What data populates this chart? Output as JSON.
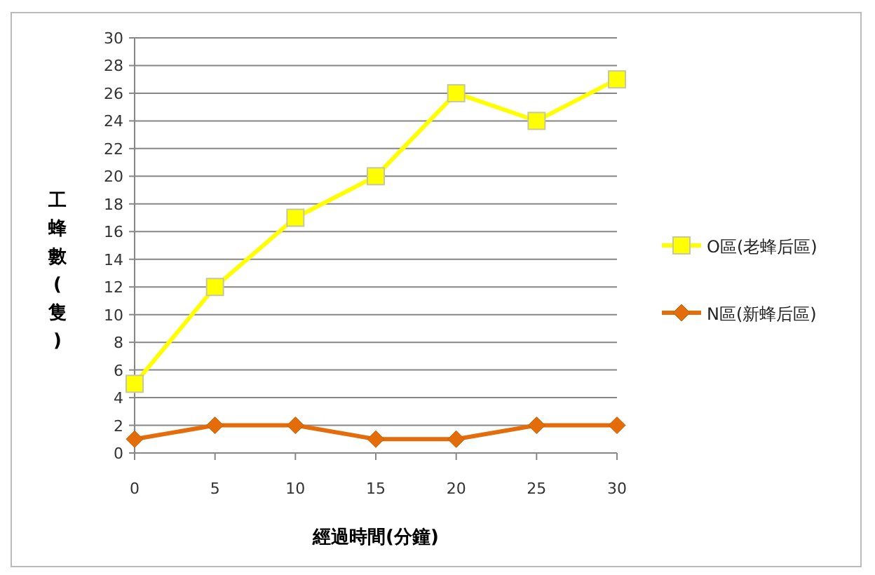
{
  "chart_data": {
    "type": "line",
    "xlabel": "經過時間(分鐘)",
    "ylabel": "工蜂數(隻)",
    "x": [
      0,
      5,
      10,
      15,
      20,
      25,
      30
    ],
    "series": [
      {
        "name": "O區(老蜂后區)",
        "color": "#ffff00",
        "marker": "square",
        "values": [
          5,
          12,
          17,
          20,
          26,
          24,
          27
        ]
      },
      {
        "name": "N區(新蜂后區)",
        "color": "#e46c0a",
        "marker": "diamond",
        "values": [
          1,
          2,
          2,
          1,
          1,
          2,
          2
        ]
      }
    ],
    "xlim": [
      0,
      30
    ],
    "xticks": [
      0,
      5,
      10,
      15,
      20,
      25,
      30
    ],
    "ylim": [
      0,
      30
    ],
    "yticks": [
      0,
      2,
      4,
      6,
      8,
      10,
      12,
      14,
      16,
      18,
      20,
      22,
      24,
      26,
      28,
      30
    ],
    "grid": "y",
    "legend": "right"
  }
}
